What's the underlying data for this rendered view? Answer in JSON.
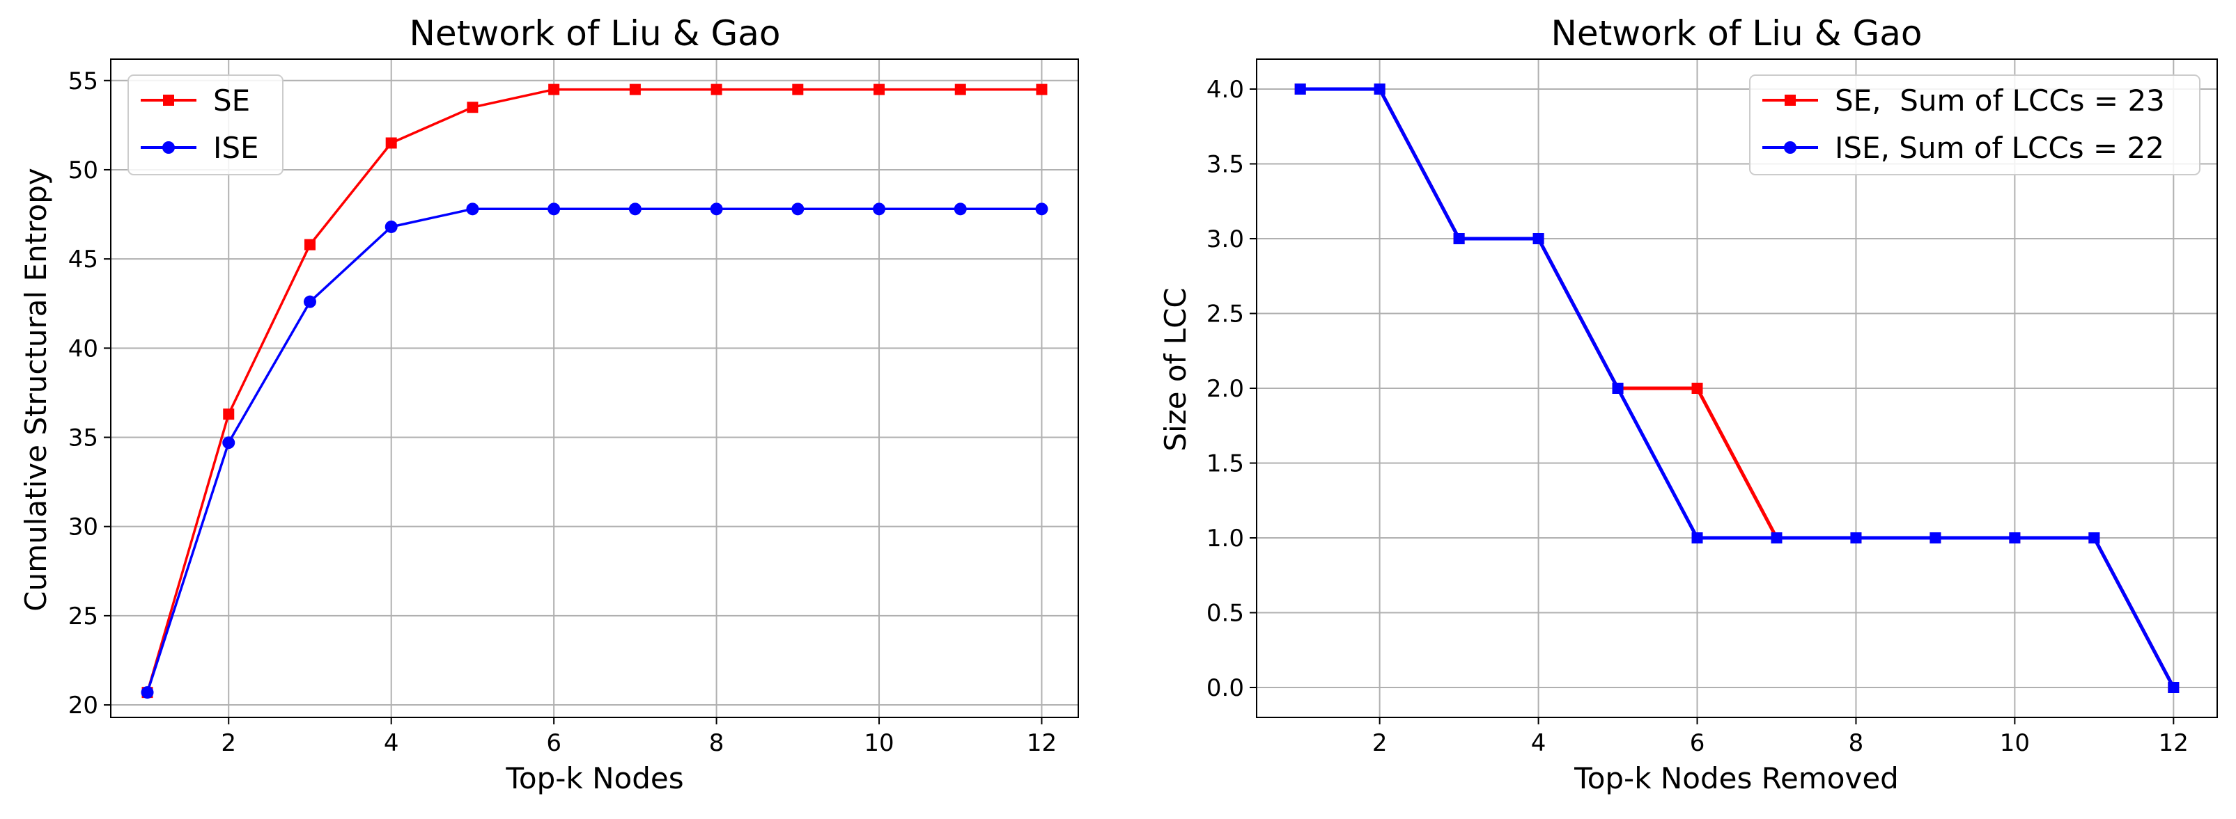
{
  "chart_data": [
    {
      "type": "line",
      "title": "Network of Liu & Gao",
      "xlabel": "Top-k Nodes",
      "ylabel": "Cumulative Structural Entropy",
      "xlim": [
        0.55,
        12.45
      ],
      "ylim": [
        19.3,
        56.2
      ],
      "x_ticks": [
        2,
        4,
        6,
        8,
        10,
        12
      ],
      "x_tick_labels": [
        "2",
        "4",
        "6",
        "8",
        "10",
        "12"
      ],
      "y_ticks": [
        20,
        25,
        30,
        35,
        40,
        45,
        50,
        55
      ],
      "y_tick_labels": [
        "20",
        "25",
        "30",
        "35",
        "40",
        "45",
        "50",
        "55"
      ],
      "grid": true,
      "legend_position": "top-left",
      "x": [
        1,
        2,
        3,
        4,
        5,
        6,
        7,
        8,
        9,
        10,
        11,
        12
      ],
      "series": [
        {
          "name": "SE",
          "color": "#ff0000",
          "marker": "square",
          "values": [
            20.7,
            36.3,
            45.8,
            51.5,
            53.5,
            54.5,
            54.5,
            54.5,
            54.5,
            54.5,
            54.5,
            54.5
          ]
        },
        {
          "name": "ISE",
          "color": "#0000ff",
          "marker": "circle",
          "values": [
            20.7,
            34.7,
            42.6,
            46.8,
            47.8,
            47.8,
            47.8,
            47.8,
            47.8,
            47.8,
            47.8,
            47.8
          ]
        }
      ]
    },
    {
      "type": "line",
      "title": "Network of Liu & Gao",
      "xlabel": "Top-k Nodes Removed",
      "ylabel": "Size of LCC",
      "xlim": [
        0.45,
        12.55
      ],
      "ylim": [
        -0.2,
        4.2
      ],
      "x_ticks": [
        2,
        4,
        6,
        8,
        10,
        12
      ],
      "x_tick_labels": [
        "2",
        "4",
        "6",
        "8",
        "10",
        "12"
      ],
      "y_ticks": [
        0,
        0.5,
        1,
        1.5,
        2,
        2.5,
        3,
        3.5,
        4
      ],
      "y_tick_labels": [
        "0.0",
        "0.5",
        "1.0",
        "1.5",
        "2.0",
        "2.5",
        "3.0",
        "3.5",
        "4.0"
      ],
      "grid": true,
      "legend_position": "top-right",
      "x": [
        1,
        2,
        3,
        4,
        5,
        6,
        7,
        8,
        9,
        10,
        11,
        12
      ],
      "series": [
        {
          "name": "SE,  Sum of LCCs = 23",
          "color": "#ff0000",
          "marker": "square",
          "values": [
            4,
            4,
            3,
            3,
            2,
            2,
            1,
            1,
            1,
            1,
            1,
            0
          ]
        },
        {
          "name": "ISE, Sum of LCCs = 22",
          "color": "#0000ff",
          "marker": "circle",
          "values": [
            4,
            4,
            3,
            3,
            2,
            1,
            1,
            1,
            1,
            1,
            1,
            0
          ]
        }
      ]
    }
  ]
}
